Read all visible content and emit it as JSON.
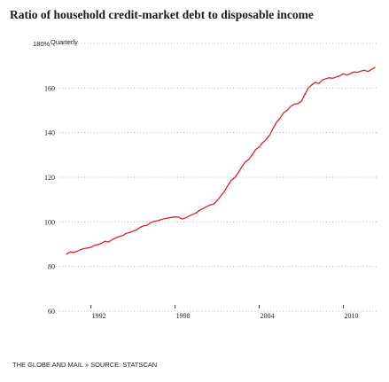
{
  "chart_data": {
    "type": "line",
    "title": "Ratio of household credit-market debt to disposable income",
    "y_unit": "%",
    "frequency": "Quarterly",
    "source": "THE GLOBE AND MAIL » SOURCE: STATSCAN",
    "ylim": [
      60,
      180
    ],
    "xlim": [
      1990.0,
      2012.5
    ],
    "y_ticks": [
      60,
      80,
      100,
      120,
      140,
      160,
      180
    ],
    "y_tick_labels": [
      "60",
      "80",
      "100",
      "120",
      "140",
      "160",
      "180%"
    ],
    "x_ticks": [
      1992,
      1998,
      2004,
      2010
    ],
    "x_tick_labels": [
      "1992",
      "1998",
      "2004",
      "2010"
    ],
    "grid": true,
    "series": [
      {
        "color": "#d9232e",
        "x": [
          1990.25,
          1990.5,
          1990.75,
          1991.0,
          1991.25,
          1991.5,
          1991.75,
          1992.0,
          1992.25,
          1992.5,
          1992.75,
          1993.0,
          1993.25,
          1993.5,
          1993.75,
          1994.0,
          1994.25,
          1994.5,
          1994.75,
          1995.0,
          1995.25,
          1995.5,
          1995.75,
          1996.0,
          1996.25,
          1996.5,
          1996.75,
          1997.0,
          1997.25,
          1997.5,
          1997.75,
          1998.0,
          1998.25,
          1998.5,
          1998.75,
          1999.0,
          1999.25,
          1999.5,
          1999.75,
          2000.0,
          2000.25,
          2000.5,
          2000.75,
          2001.0,
          2001.25,
          2001.5,
          2001.75,
          2002.0,
          2002.25,
          2002.5,
          2002.75,
          2003.0,
          2003.25,
          2003.5,
          2003.75,
          2004.0,
          2004.25,
          2004.5,
          2004.75,
          2005.0,
          2005.25,
          2005.5,
          2005.75,
          2006.0,
          2006.25,
          2006.5,
          2006.75,
          2007.0,
          2007.25,
          2007.5,
          2007.75,
          2008.0,
          2008.25,
          2008.5,
          2008.75,
          2009.0,
          2009.25,
          2009.5,
          2009.75,
          2010.0,
          2010.25,
          2010.5,
          2010.75,
          2011.0,
          2011.25,
          2011.5,
          2011.75,
          2012.0,
          2012.25
        ],
        "y": [
          85.5,
          86.5,
          86.3,
          86.8,
          87.5,
          88.0,
          88.3,
          88.6,
          89.5,
          89.8,
          90.4,
          91.3,
          91.0,
          92.0,
          92.8,
          93.4,
          93.8,
          94.8,
          95.2,
          95.8,
          96.4,
          97.5,
          98.2,
          98.5,
          99.6,
          100.2,
          100.5,
          101.0,
          101.4,
          101.8,
          102.0,
          102.2,
          102.1,
          101.3,
          101.8,
          102.6,
          103.4,
          104.0,
          105.2,
          106.0,
          106.8,
          107.6,
          108.0,
          109.5,
          111.5,
          113.5,
          116.2,
          118.6,
          119.8,
          122.0,
          124.6,
          126.8,
          128.0,
          130.0,
          132.5,
          133.5,
          135.5,
          137.0,
          139.0,
          142.0,
          144.8,
          146.5,
          149.0,
          150.0,
          151.8,
          152.8,
          153.0,
          154.0,
          157.0,
          160.0,
          161.4,
          162.6,
          162.0,
          163.6,
          164.2,
          164.6,
          164.4,
          165.0,
          165.5,
          166.4,
          165.8,
          166.5,
          167.2,
          167.0,
          167.6,
          168.0,
          167.4,
          168.3,
          169.2
        ]
      }
    ]
  }
}
